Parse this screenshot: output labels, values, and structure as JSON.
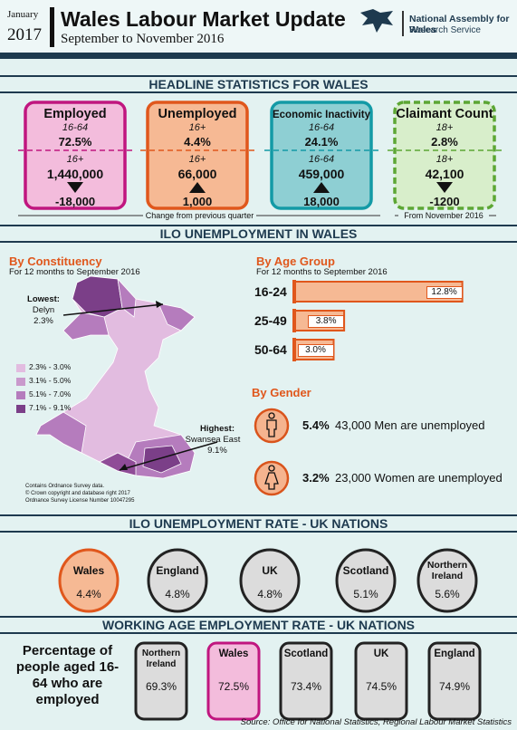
{
  "header": {
    "month": "January",
    "year": "2017",
    "title": "Wales Labour Market Update",
    "subtitle": "September to November 2016",
    "organization": "National Assembly for Wales",
    "department": "Research Service"
  },
  "headline": {
    "title": "HEADLINE STATISTICS FOR WALES",
    "cards": [
      {
        "name": "Employed",
        "age_top": "16-64",
        "rate": "72.5%",
        "age_bottom": "16+",
        "level": "1,440,000",
        "change": "-18,000"
      },
      {
        "name": "Unemployed",
        "age_top": "16+",
        "rate": "4.4%",
        "age_bottom": "16+",
        "level": "66,000",
        "change": "1,000"
      },
      {
        "name": "Economic Inactivity",
        "age_top": "16-64",
        "rate": "24.1%",
        "age_bottom": "16-64",
        "level": "459,000",
        "change": "18,000"
      },
      {
        "name": "Claimant Count",
        "age_top": "18+",
        "rate": "2.8%",
        "age_bottom": "18+",
        "level": "42,100",
        "change": "-1200"
      }
    ],
    "notes": [
      "Change from previous quarter",
      "From November 2016"
    ]
  },
  "ilo": {
    "title": "ILO UNEMPLOYMENT IN WALES",
    "constituency": {
      "title": "By Constituency",
      "subtitle": "For 12 months to September 2016",
      "lowest_label": "Lowest:",
      "lowest_name": "Delyn",
      "lowest_value": "2.3%",
      "highest_label": "Highest:",
      "highest_name": "Swansea East",
      "highest_value": "9.1%",
      "legend": [
        "2.3% - 3.0%",
        "3.1% - 5.0%",
        "5.1% - 7.0%",
        "7.1% - 9.1%"
      ],
      "copyright": [
        "Contains Ordnance Survey data.",
        "© Crown copyright and database right 2017",
        "Ordnance Survey License Number 10047295"
      ]
    },
    "age_group": {
      "title": "By Age Group",
      "subtitle": "For 12 months to September 2016",
      "categories": [
        "16-24",
        "25-49",
        "50-64"
      ],
      "values": [
        12.8,
        3.8,
        3.0
      ],
      "value_labels": [
        "12.8%",
        "3.8%",
        "3.0%"
      ]
    },
    "gender": {
      "title": "By Gender",
      "items": [
        {
          "rate": "5.4%",
          "text": "43,000 Men are unemployed"
        },
        {
          "rate": "3.2%",
          "text": "23,000 Women are unemployed"
        }
      ]
    }
  },
  "uk_rate": {
    "title": "ILO UNEMPLOYMENT RATE - UK NATIONS",
    "nations": [
      {
        "name": "Wales",
        "value": "4.4%"
      },
      {
        "name": "England",
        "value": "4.8%"
      },
      {
        "name": "UK",
        "value": "4.8%"
      },
      {
        "name": "Scotland",
        "value": "5.1%"
      },
      {
        "name": "Northern Ireland",
        "value": "5.6%"
      }
    ]
  },
  "employment_rate": {
    "title": "WORKING AGE EMPLOYMENT RATE - UK NATIONS",
    "description": "Percentage of people aged 16-64 who are employed",
    "nations": [
      {
        "name": "Northern Ireland",
        "value": "69.3%"
      },
      {
        "name": "Wales",
        "value": "72.5%"
      },
      {
        "name": "Scotland",
        "value": "73.4%"
      },
      {
        "name": "UK",
        "value": "74.5%"
      },
      {
        "name": "England",
        "value": "74.9%"
      }
    ]
  },
  "source": "Source: Office for National Statistics, Regional Labour Market Statistics"
}
